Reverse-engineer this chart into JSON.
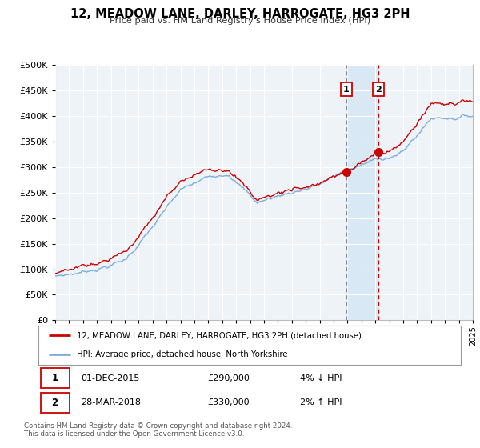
{
  "title": "12, MEADOW LANE, DARLEY, HARROGATE, HG3 2PH",
  "subtitle": "Price paid vs. HM Land Registry's House Price Index (HPI)",
  "legend_line1": "12, MEADOW LANE, DARLEY, HARROGATE, HG3 2PH (detached house)",
  "legend_line2": "HPI: Average price, detached house, North Yorkshire",
  "transaction1_date": "01-DEC-2015",
  "transaction1_price": "£290,000",
  "transaction1_hpi": "4% ↓ HPI",
  "transaction2_date": "28-MAR-2018",
  "transaction2_price": "£330,000",
  "transaction2_hpi": "2% ↑ HPI",
  "footer": "Contains HM Land Registry data © Crown copyright and database right 2024.\nThis data is licensed under the Open Government Licence v3.0.",
  "line_color_red": "#cc0000",
  "line_color_blue": "#7aade0",
  "background_color": "#eef3f8",
  "shaded_region_color": "#d8e8f4",
  "marker1_date": 2015.92,
  "marker1_value": 290000,
  "marker2_date": 2018.24,
  "marker2_value": 330000,
  "ylim_max": 500000,
  "xlim_start": 1995,
  "xlim_end": 2025
}
